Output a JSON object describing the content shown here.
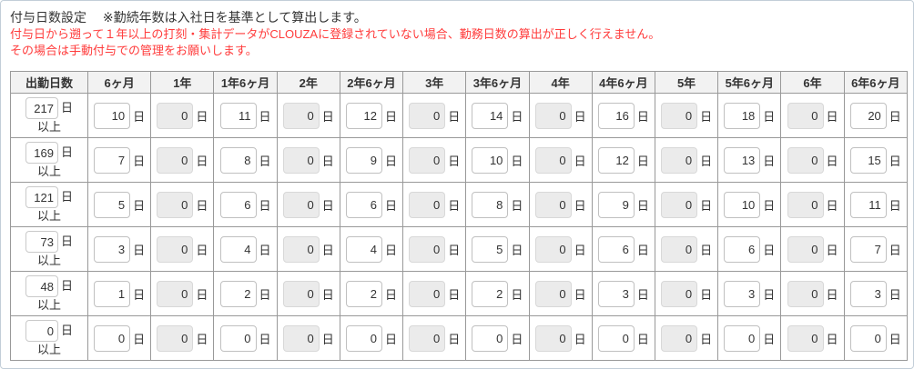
{
  "header": {
    "title": "付与日数設定",
    "note": "※勤続年数は入社日を基準として算出します。"
  },
  "warnings": {
    "line1": "付与日から遡って１年以上の打刻・集計データがCLOUZAに登録されていない場合、勤務日数の算出が正しく行えません。",
    "line2": "その場合は手動付与での管理をお願いします。"
  },
  "table": {
    "day_suffix": "日",
    "at_least_label": "以上",
    "columns": [
      "出勤日数",
      "6ヶ月",
      "1年",
      "1年6ヶ月",
      "2年",
      "2年6ヶ月",
      "3年",
      "3年6ヶ月",
      "4年",
      "4年6ヶ月",
      "5年",
      "5年6ヶ月",
      "6年",
      "6年6ヶ月"
    ],
    "disabled_column_indexes": [
      1,
      3,
      5,
      7,
      9,
      11
    ],
    "rows": [
      {
        "attendance_days": "217",
        "values": [
          "10",
          "0",
          "11",
          "0",
          "12",
          "0",
          "14",
          "0",
          "16",
          "0",
          "18",
          "0",
          "20"
        ]
      },
      {
        "attendance_days": "169",
        "values": [
          "7",
          "0",
          "8",
          "0",
          "9",
          "0",
          "10",
          "0",
          "12",
          "0",
          "13",
          "0",
          "15"
        ]
      },
      {
        "attendance_days": "121",
        "values": [
          "5",
          "0",
          "6",
          "0",
          "6",
          "0",
          "8",
          "0",
          "9",
          "0",
          "10",
          "0",
          "11"
        ]
      },
      {
        "attendance_days": "73",
        "values": [
          "3",
          "0",
          "4",
          "0",
          "4",
          "0",
          "5",
          "0",
          "6",
          "0",
          "6",
          "0",
          "7"
        ]
      },
      {
        "attendance_days": "48",
        "values": [
          "1",
          "0",
          "2",
          "0",
          "2",
          "0",
          "2",
          "0",
          "3",
          "0",
          "3",
          "0",
          "3"
        ]
      },
      {
        "attendance_days": "0",
        "values": [
          "0",
          "0",
          "0",
          "0",
          "0",
          "0",
          "0",
          "0",
          "0",
          "0",
          "0",
          "0",
          "0"
        ]
      }
    ]
  },
  "colors": {
    "warning_text": "#ff3b3b",
    "table_border": "#999999",
    "header_background": "#f2f2f2",
    "disabled_input_background": "#ebebeb",
    "panel_border": "#c2ced8",
    "text": "#333333"
  }
}
